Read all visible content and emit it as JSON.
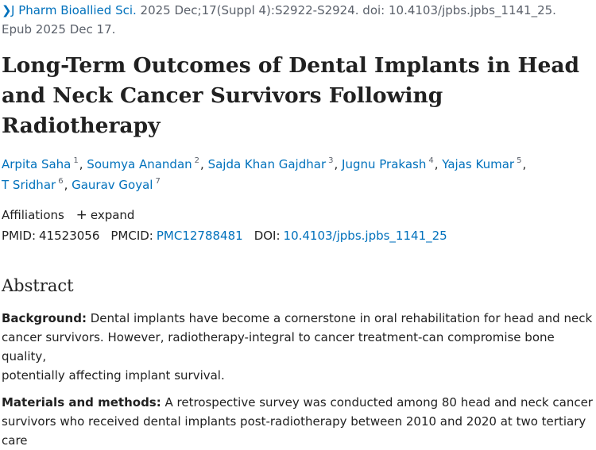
{
  "citation": {
    "chevron": "chevron-right-icon",
    "journal": "J Pharm Bioallied Sci.",
    "line1_rest": " 2025 Dec;17(Suppl 4):S2922-S2924. doi: 10.4103/jpbs.jpbs_1141_25.",
    "line2": "Epub 2025 Dec 17."
  },
  "article": {
    "title_line1": "Long-Term Outcomes of Dental Implants in Head",
    "title_line2": "and Neck Cancer Survivors Following Radiotherapy"
  },
  "authors": [
    {
      "name": "Arpita Saha",
      "sup": "1"
    },
    {
      "name": "Soumya Anandan",
      "sup": "2"
    },
    {
      "name": "Sajda Khan Gajdhar",
      "sup": "3"
    },
    {
      "name": "Jugnu Prakash",
      "sup": "4"
    },
    {
      "name": "Yajas Kumar",
      "sup": "5"
    },
    {
      "name": "T Sridhar",
      "sup": "6"
    },
    {
      "name": "Gaurav Goyal",
      "sup": "7"
    }
  ],
  "affiliations": {
    "label": "Affiliations",
    "expand_label": "expand",
    "expand_icon": "plus-icon"
  },
  "identifiers": {
    "pmid_label": "PMID:",
    "pmid": "41523056",
    "pmcid_label": "PMCID:",
    "pmcid": "PMC12788481",
    "doi_label": "DOI:",
    "doi": "10.4103/jpbs.jpbs_1141_25"
  },
  "abstract": {
    "heading": "Abstract",
    "background_label": "Background:",
    "background_l1": " Dental implants have become a cornerstone in oral rehabilitation for head and neck",
    "background_l2": "cancer survivors. However, radiotherapy-integral to cancer treatment-can compromise bone quality,",
    "background_l3": "potentially affecting implant survival.",
    "methods_label": "Materials and methods:",
    "methods_l1": " A retrospective survey was conducted among 80 head and neck cancer",
    "methods_l2": "survivors who received dental implants post-radiotherapy between 2010 and 2020 at two tertiary care"
  },
  "colors": {
    "link": "#0071bc",
    "text": "#212121",
    "muted": "#5b616b"
  }
}
